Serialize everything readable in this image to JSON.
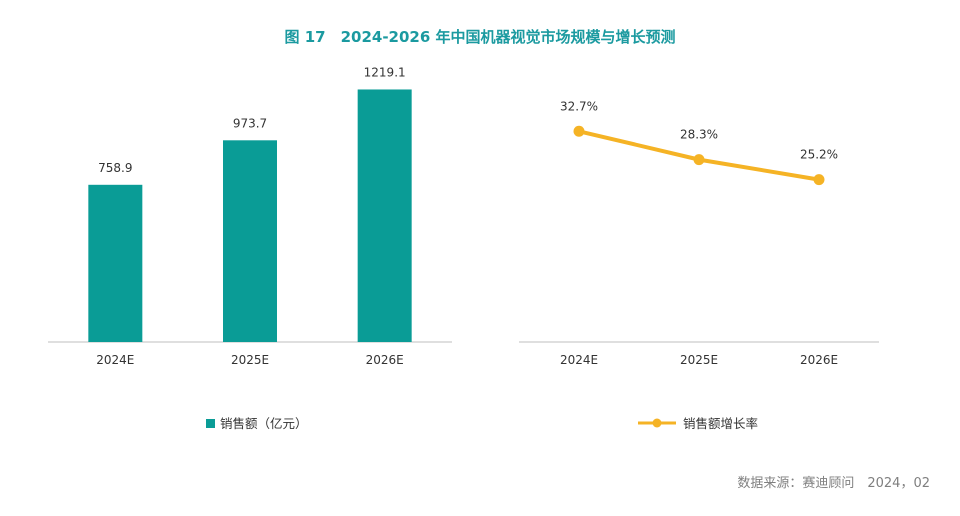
{
  "title": "图 17　2024-2026 年中国机器视觉市场规模与增长预测",
  "source": "数据来源：赛迪顾问　2024，02",
  "colors": {
    "title": "#1b9aa0",
    "bar": "#0a9c96",
    "line": "#f5b325",
    "axis": "#bfbfbf",
    "text": "#333333"
  },
  "chart_data": [
    {
      "type": "bar",
      "categories": [
        "2024E",
        "2025E",
        "2026E"
      ],
      "series": [
        {
          "name": "销售额（亿元）",
          "values": [
            758.9,
            973.7,
            1219.1
          ]
        }
      ],
      "data_labels": [
        "758.9",
        "973.7",
        "1219.1"
      ],
      "ylim": [
        0,
        1400
      ],
      "legend_position": "bottom",
      "grid": false
    },
    {
      "type": "line",
      "categories": [
        "2024E",
        "2025E",
        "2026E"
      ],
      "series": [
        {
          "name": "销售额增长率",
          "values": [
            32.7,
            28.3,
            25.2
          ]
        }
      ],
      "data_labels": [
        "32.7%",
        "28.3%",
        "25.2%"
      ],
      "ylim": [
        0,
        45
      ],
      "legend_position": "bottom",
      "grid": false
    }
  ]
}
